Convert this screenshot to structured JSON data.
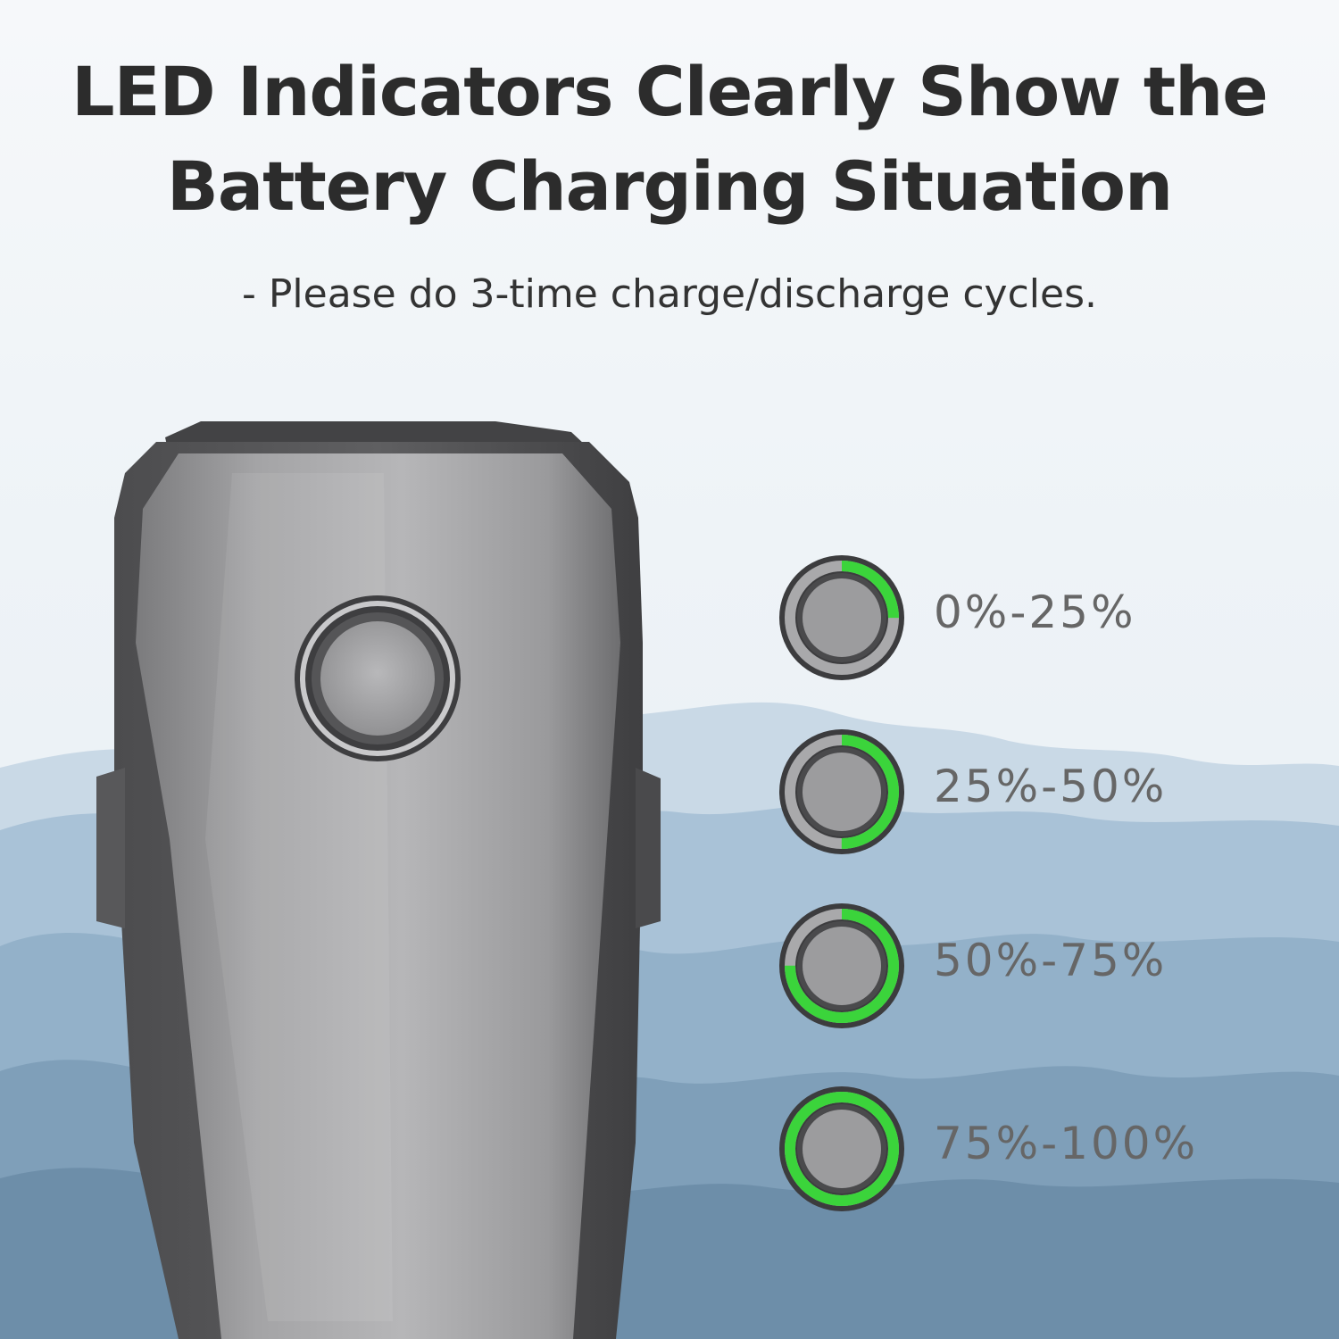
{
  "headline": {
    "line1": "LED Indicators Clearly Show the",
    "line2": "Battery Charging Situation"
  },
  "subhead": "- Please do 3-time charge/discharge cycles.",
  "indicators": [
    {
      "label": "0%-25%",
      "level": 0.25
    },
    {
      "label": "25%-50%",
      "level": 0.5
    },
    {
      "label": "50%-75%",
      "level": 0.75
    },
    {
      "label": "75%-100%",
      "level": 1.0
    }
  ],
  "colors": {
    "led_green": "#3bd43b",
    "headline_text": "#2c2c2c",
    "label_text": "#666666",
    "mountain_blue": "#8fb0cc"
  },
  "icons": {
    "battery": "drone-battery-icon",
    "power_button": "power-button-icon",
    "led_ring": "led-ring-icon"
  }
}
